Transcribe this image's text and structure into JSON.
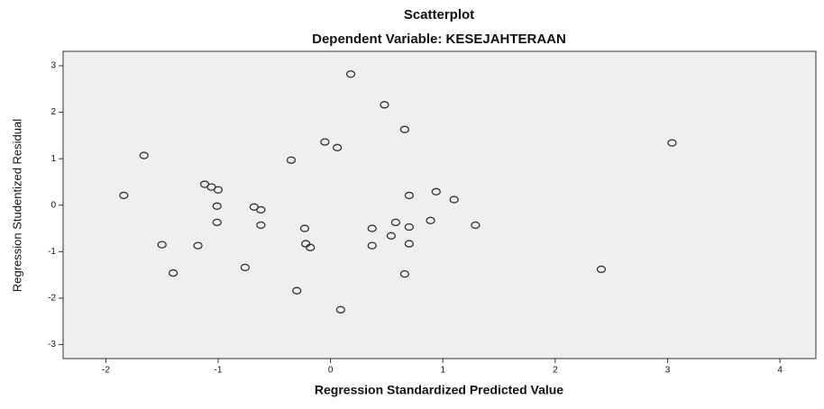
{
  "chart_data": {
    "type": "scatter",
    "title": "Scatterplot",
    "subtitle": "Dependent Variable: KESEJAHTERAAN",
    "x_label": "Regression Standardized Predicted Value",
    "y_label": "Regression Studentized Residual",
    "color": "#333333",
    "background": "#efefef",
    "x": [
      0.18,
      0.48,
      0.66,
      -0.05,
      0.06,
      3.04,
      -1.66,
      -0.35,
      -1.84,
      -1.12,
      -1.06,
      -1.0,
      -1.01,
      -0.68,
      -0.62,
      -1.01,
      -0.62,
      0.7,
      0.94,
      1.1,
      0.58,
      0.89,
      0.37,
      -0.23,
      0.7,
      0.54,
      1.29,
      -1.5,
      -1.18,
      -0.22,
      -0.18,
      0.37,
      0.7,
      -1.4,
      -0.76,
      0.66,
      2.41,
      -0.3,
      0.09
    ],
    "values": [
      2.82,
      2.16,
      1.63,
      1.36,
      1.24,
      1.34,
      1.07,
      0.97,
      0.21,
      0.45,
      0.39,
      0.33,
      -0.02,
      -0.04,
      -0.1,
      -0.37,
      -0.43,
      0.21,
      0.29,
      0.12,
      -0.37,
      -0.33,
      -0.5,
      -0.5,
      -0.47,
      -0.66,
      -0.43,
      -0.85,
      -0.87,
      -0.83,
      -0.91,
      -0.87,
      -0.83,
      -1.46,
      -1.34,
      -1.48,
      -1.38,
      -1.84,
      -2.25
    ],
    "xlim": [
      -2.38,
      4.32
    ],
    "xticks": [
      -2,
      -1,
      0,
      1,
      2,
      3,
      4
    ],
    "ylim": [
      -3.3,
      3.31
    ],
    "yticks": [
      -3,
      -2,
      -1,
      0,
      1,
      2,
      3
    ]
  }
}
